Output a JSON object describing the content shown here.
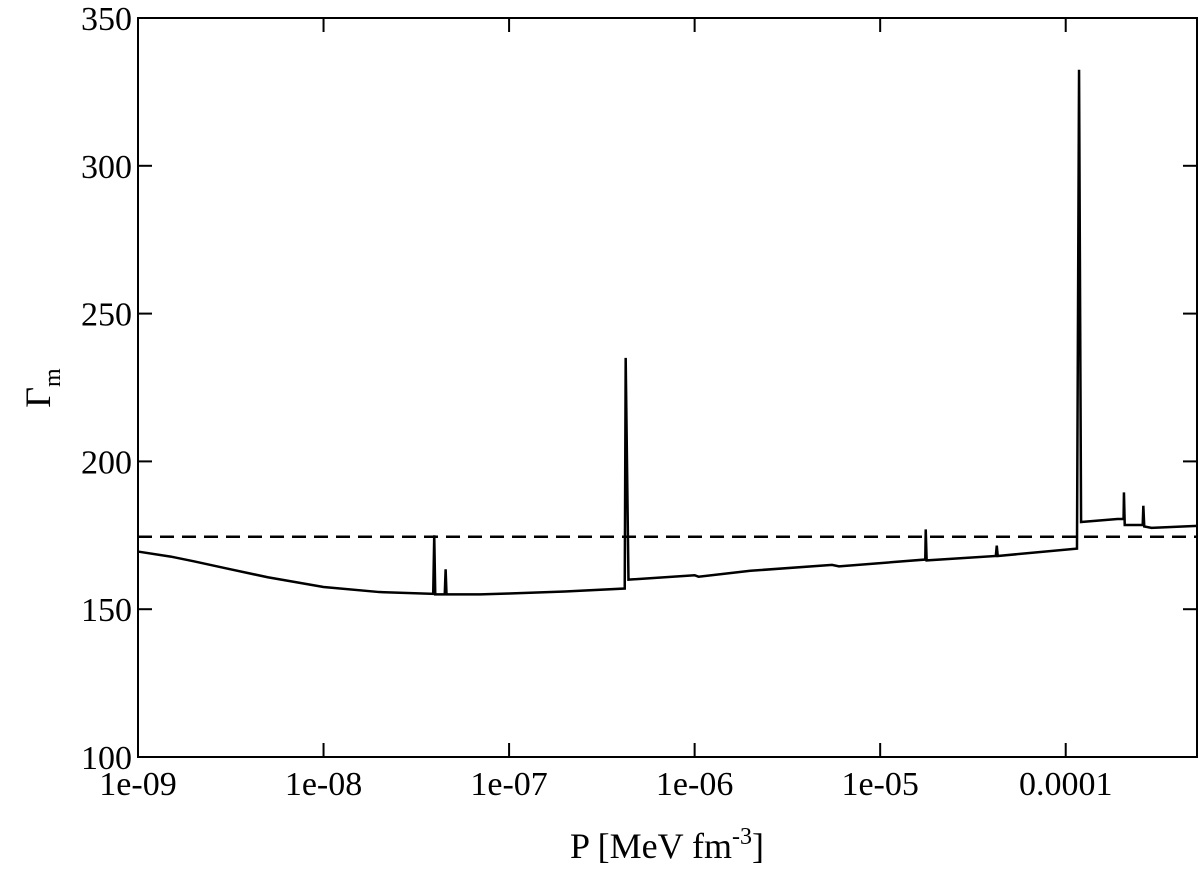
{
  "chart_data": {
    "type": "line",
    "xlabel": {
      "main": "P [MeV fm",
      "sup": "-3",
      "tail": "]"
    },
    "ylabel": {
      "main": "Γ",
      "sub": "m"
    },
    "xscale": "log",
    "xlim": [
      1e-09,
      0.00051
    ],
    "ylim": [
      100,
      350
    ],
    "xticks": [
      {
        "value": 1e-09,
        "label": "1e-09"
      },
      {
        "value": 1e-08,
        "label": "1e-08"
      },
      {
        "value": 1e-07,
        "label": "1e-07"
      },
      {
        "value": 1e-06,
        "label": "1e-06"
      },
      {
        "value": 1e-05,
        "label": "1e-05"
      },
      0.0001
    ],
    "yticks": [
      100,
      150,
      200,
      250,
      300,
      350
    ],
    "hline": {
      "value": 174.5,
      "color": "#000000",
      "dash": "dashed"
    },
    "series": [
      {
        "color": "#000000",
        "x": [
          1e-09,
          1.5e-09,
          2e-09,
          3e-09,
          5e-09,
          1e-08,
          2e-08,
          3.9e-08,
          3.95e-08,
          4e-08,
          4.5e-08,
          4.55e-08,
          4.6e-08,
          7e-08,
          1e-07,
          2e-07,
          4.2e-07,
          4.25e-07,
          4.4e-07,
          1e-06,
          1.05e-06,
          2e-06,
          5.5e-06,
          6e-06,
          1.75e-05,
          1.76e-05,
          1.78e-05,
          4.2e-05,
          4.25e-05,
          4.3e-05,
          0.000115,
          0.000118,
          0.000121,
          0.00019,
          0.000205,
          0.000206,
          0.000208,
          0.00026,
          0.000262,
          0.000265,
          0.00029,
          0.00051
        ],
        "values": [
          169.5,
          167.8,
          166.2,
          163.8,
          160.8,
          157.5,
          155.8,
          155.2,
          175,
          155,
          155,
          163.5,
          155,
          155,
          155.3,
          156,
          157,
          235,
          160,
          161.5,
          161,
          163,
          165,
          164.5,
          166.8,
          177,
          166.5,
          168,
          171.5,
          168,
          170.5,
          332.5,
          179.5,
          180.5,
          180.5,
          189.5,
          178.5,
          178.5,
          185,
          178,
          177.5,
          178.2
        ]
      }
    ]
  }
}
